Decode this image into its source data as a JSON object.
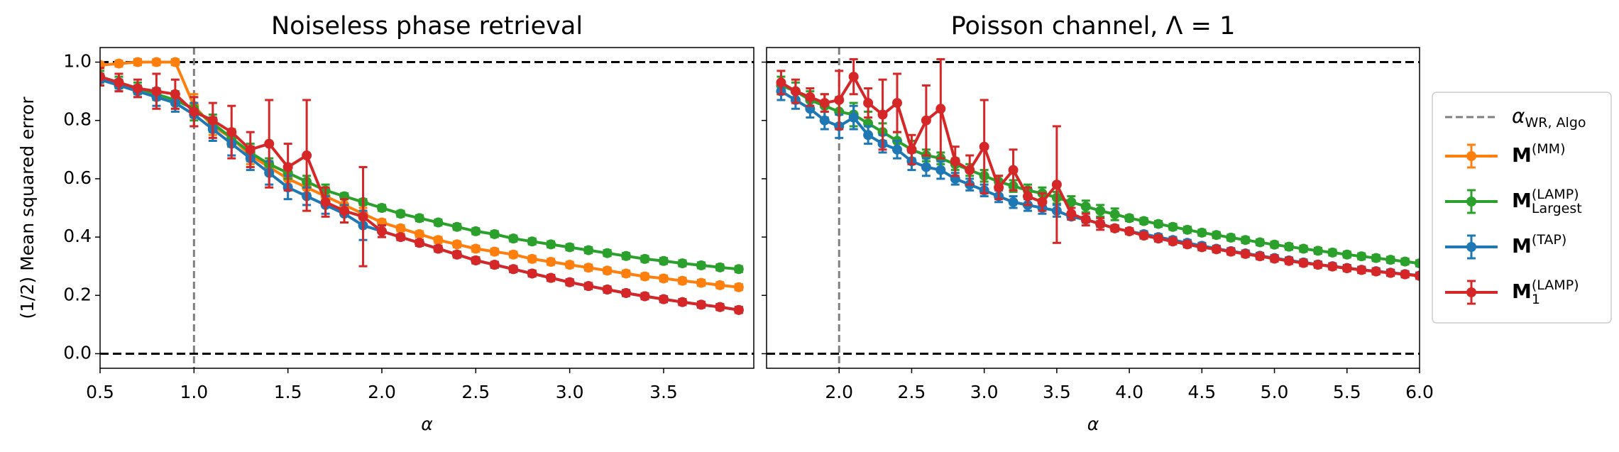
{
  "chart_data": {
    "type": "line",
    "ylabel": "(1/2) Mean squared error",
    "xlabel": "α",
    "ylim": [
      -0.05,
      1.05
    ],
    "yticks": [
      {
        "value": 0,
        "label": "0.0"
      },
      0.2,
      0.4,
      0.6,
      0.8,
      {
        "value": 1,
        "label": "1.0"
      }
    ],
    "hlines": [
      0,
      1
    ],
    "vline_legend": {
      "base": "α",
      "sub": "WR, Algo"
    },
    "series": [
      {
        "name": "M",
        "sup": "(MM)",
        "color": "#ff7f0e"
      },
      {
        "name": "M",
        "sup": "(LAMP)",
        "sub": "Largest",
        "color": "#2ca02c"
      },
      {
        "name": "M",
        "sup": "(TAP)",
        "color": "#1f77b4"
      },
      {
        "name": "M",
        "sup": "(LAMP)",
        "sub": "1",
        "color": "#d62728"
      }
    ],
    "panels": [
      {
        "title": "Noiseless phase retrieval",
        "xlim": [
          0.5,
          3.98
        ],
        "xticks": [
          0.5,
          {
            "value": 1,
            "label": "1.0"
          },
          1.5,
          {
            "value": 2,
            "label": "2.0"
          },
          2.5,
          {
            "value": 3,
            "label": "3.0"
          },
          3.5
        ],
        "vline": 1,
        "x": [
          0.5,
          0.6,
          0.7,
          0.8,
          0.9,
          1.0,
          1.1,
          1.2,
          1.3,
          1.4,
          1.5,
          1.6,
          1.7,
          1.8,
          1.9,
          2.0,
          2.1,
          2.2,
          2.3,
          2.4,
          2.5,
          2.6,
          2.7,
          2.8,
          2.9,
          3.0,
          3.1,
          3.2,
          3.3,
          3.4,
          3.5,
          3.6,
          3.7,
          3.8,
          3.9
        ],
        "series": [
          {
            "values": [
              0.99,
              0.995,
              1.0,
              1.0,
              1.0,
              0.85,
              0.78,
              0.74,
              0.68,
              0.64,
              0.6,
              0.57,
              0.54,
              0.51,
              0.48,
              0.45,
              0.43,
              0.41,
              0.39,
              0.375,
              0.36,
              0.35,
              0.34,
              0.325,
              0.315,
              0.305,
              0.295,
              0.285,
              0.275,
              0.265,
              0.258,
              0.25,
              0.243,
              0.235,
              0.228
            ],
            "errors": [
              0.01,
              0.01,
              0.01,
              0.01,
              0.01,
              0.04,
              0.03,
              0.03,
              0.03,
              0.02,
              0.02,
              0.02,
              0.02,
              0.02,
              0.02,
              0.01,
              0.01,
              0.01,
              0.01,
              0.01,
              0.01,
              0.01,
              0.01,
              0.01,
              0.01,
              0.01,
              0.01,
              0.01,
              0.01,
              0.01,
              0.01,
              0.01,
              0.01,
              0.01,
              0.01
            ]
          },
          {
            "values": [
              0.95,
              0.93,
              0.91,
              0.89,
              0.87,
              0.84,
              0.79,
              0.74,
              0.69,
              0.65,
              0.62,
              0.59,
              0.56,
              0.54,
              0.52,
              0.5,
              0.48,
              0.465,
              0.45,
              0.435,
              0.42,
              0.41,
              0.395,
              0.385,
              0.375,
              0.365,
              0.355,
              0.345,
              0.335,
              0.325,
              0.318,
              0.31,
              0.303,
              0.296,
              0.29
            ],
            "errors": [
              0.02,
              0.02,
              0.02,
              0.02,
              0.03,
              0.04,
              0.03,
              0.03,
              0.03,
              0.02,
              0.02,
              0.02,
              0.02,
              0.01,
              0.01,
              0.01,
              0.01,
              0.01,
              0.01,
              0.01,
              0.01,
              0.01,
              0.01,
              0.01,
              0.01,
              0.01,
              0.01,
              0.01,
              0.01,
              0.01,
              0.01,
              0.01,
              0.01,
              0.01,
              0.01
            ]
          },
          {
            "values": [
              0.94,
              0.92,
              0.9,
              0.88,
              0.86,
              0.82,
              0.77,
              0.72,
              0.67,
              0.62,
              0.57,
              0.54,
              0.51,
              0.48,
              0.44,
              0.42,
              0.4,
              0.38,
              0.36,
              0.34,
              0.32,
              0.305,
              0.29,
              0.275,
              0.26,
              0.245,
              0.232,
              0.22,
              0.208,
              0.197,
              0.187,
              0.177,
              0.168,
              0.16,
              0.15
            ],
            "errors": [
              0.02,
              0.02,
              0.02,
              0.03,
              0.03,
              0.04,
              0.04,
              0.04,
              0.04,
              0.04,
              0.04,
              0.03,
              0.03,
              0.03,
              0.05,
              0.02,
              0.01,
              0.01,
              0.01,
              0.01,
              0.01,
              0.01,
              0.01,
              0.01,
              0.01,
              0.01,
              0.01,
              0.01,
              0.01,
              0.01,
              0.01,
              0.01,
              0.01,
              0.01,
              0.01
            ]
          },
          {
            "values": [
              0.95,
              0.93,
              0.91,
              0.9,
              0.89,
              0.83,
              0.8,
              0.76,
              0.7,
              0.72,
              0.64,
              0.68,
              0.52,
              0.49,
              0.47,
              0.42,
              0.4,
              0.38,
              0.36,
              0.34,
              0.32,
              0.305,
              0.29,
              0.275,
              0.26,
              0.245,
              0.232,
              0.22,
              0.208,
              0.197,
              0.187,
              0.177,
              0.168,
              0.16,
              0.15
            ],
            "errors": [
              0.03,
              0.03,
              0.03,
              0.06,
              0.05,
              0.05,
              0.06,
              0.09,
              0.06,
              0.15,
              0.08,
              0.19,
              0.05,
              0.04,
              0.17,
              0.02,
              0.01,
              0.01,
              0.01,
              0.01,
              0.01,
              0.01,
              0.01,
              0.01,
              0.01,
              0.01,
              0.01,
              0.01,
              0.01,
              0.01,
              0.01,
              0.01,
              0.01,
              0.01,
              0.01
            ]
          }
        ]
      },
      {
        "title": "Poisson channel, Λ = 1",
        "xlim": [
          1.5,
          6.0
        ],
        "xticks": [
          {
            "value": 2,
            "label": "2.0"
          },
          2.5,
          {
            "value": 3,
            "label": "3.0"
          },
          3.5,
          {
            "value": 4,
            "label": "4.0"
          },
          4.5,
          {
            "value": 5,
            "label": "5.0"
          },
          5.5,
          {
            "value": 6,
            "label": "6.0"
          }
        ],
        "vline": 2,
        "x": [
          1.6,
          1.7,
          1.8,
          1.9,
          2.0,
          2.1,
          2.2,
          2.3,
          2.4,
          2.5,
          2.6,
          2.7,
          2.8,
          2.9,
          3.0,
          3.1,
          3.2,
          3.3,
          3.4,
          3.5,
          3.6,
          3.7,
          3.8,
          3.9,
          4.0,
          4.1,
          4.2,
          4.3,
          4.4,
          4.5,
          4.6,
          4.7,
          4.8,
          4.9,
          5.0,
          5.1,
          5.2,
          5.3,
          5.4,
          5.5,
          5.6,
          5.7,
          5.8,
          5.9,
          6.0
        ],
        "series": [
          {
            "values": [
              null,
              null,
              null,
              null,
              null,
              null,
              null,
              null,
              null,
              null,
              null,
              null,
              null,
              null,
              null,
              null,
              null,
              null,
              null,
              null,
              null,
              null,
              null,
              null,
              null,
              null,
              null,
              null,
              null,
              null,
              null,
              null,
              null,
              null,
              null,
              null,
              null,
              null,
              null,
              null,
              null,
              null,
              null,
              null,
              null
            ],
            "errors": [
              null,
              null,
              null,
              null,
              null,
              null,
              null,
              null,
              null,
              null,
              null,
              null,
              null,
              null,
              null,
              null,
              null,
              null,
              null,
              null,
              null,
              null,
              null,
              null,
              null,
              null,
              null,
              null,
              null,
              null,
              null,
              null,
              null,
              null,
              null,
              null,
              null,
              null,
              null,
              null,
              null,
              null,
              null,
              null,
              null
            ]
          },
          {
            "values": [
              0.92,
              0.9,
              0.87,
              0.85,
              0.83,
              0.82,
              0.79,
              0.76,
              0.73,
              0.7,
              0.68,
              0.67,
              0.65,
              0.63,
              0.61,
              0.59,
              0.575,
              0.56,
              0.55,
              0.535,
              0.52,
              0.505,
              0.49,
              0.478,
              0.465,
              0.455,
              0.445,
              0.435,
              0.425,
              0.415,
              0.407,
              0.398,
              0.39,
              0.382,
              0.374,
              0.367,
              0.36,
              0.353,
              0.347,
              0.34,
              0.334,
              0.328,
              0.322,
              0.316,
              0.31
            ],
            "errors": [
              0.03,
              0.03,
              0.03,
              0.04,
              0.05,
              0.04,
              0.04,
              0.03,
              0.03,
              0.03,
              0.02,
              0.02,
              0.02,
              0.02,
              0.02,
              0.02,
              0.02,
              0.02,
              0.02,
              0.02,
              0.02,
              0.02,
              0.02,
              0.02,
              0.01,
              0.01,
              0.01,
              0.01,
              0.01,
              0.01,
              0.01,
              0.01,
              0.01,
              0.01,
              0.01,
              0.01,
              0.01,
              0.01,
              0.01,
              0.01,
              0.01,
              0.01,
              0.01,
              0.01,
              0.01
            ]
          },
          {
            "values": [
              0.9,
              0.87,
              0.84,
              0.8,
              0.78,
              0.81,
              0.75,
              0.72,
              0.7,
              0.66,
              0.64,
              0.63,
              0.6,
              0.58,
              0.56,
              0.54,
              0.52,
              0.51,
              0.5,
              0.49,
              0.47,
              0.46,
              0.445,
              0.43,
              0.42,
              0.41,
              0.4,
              0.39,
              0.38,
              0.37,
              0.36,
              0.352,
              0.344,
              0.336,
              0.328,
              0.32,
              0.313,
              0.306,
              0.3,
              0.294,
              0.288,
              0.283,
              0.278,
              0.273,
              0.268
            ],
            "errors": [
              0.03,
              0.03,
              0.03,
              0.03,
              0.04,
              0.04,
              0.03,
              0.03,
              0.03,
              0.03,
              0.03,
              0.03,
              0.02,
              0.02,
              0.02,
              0.02,
              0.02,
              0.02,
              0.02,
              0.02,
              0.01,
              0.01,
              0.01,
              0.01,
              0.01,
              0.01,
              0.01,
              0.01,
              0.01,
              0.01,
              0.01,
              0.01,
              0.01,
              0.01,
              0.01,
              0.01,
              0.01,
              0.01,
              0.01,
              0.01,
              0.01,
              0.01,
              0.01,
              0.01,
              0.01
            ]
          },
          {
            "values": [
              0.93,
              0.9,
              0.88,
              0.86,
              0.87,
              0.95,
              0.86,
              0.82,
              0.86,
              0.7,
              0.8,
              0.84,
              0.66,
              0.63,
              0.71,
              0.57,
              0.63,
              0.54,
              0.52,
              0.58,
              0.48,
              0.46,
              0.445,
              0.43,
              0.42,
              0.405,
              0.395,
              0.385,
              0.375,
              0.365,
              0.358,
              0.35,
              0.342,
              0.334,
              0.326,
              0.318,
              0.311,
              0.305,
              0.299,
              0.293,
              0.287,
              0.282,
              0.277,
              0.272,
              0.267
            ],
            "errors": [
              0.04,
              0.04,
              0.03,
              0.03,
              0.1,
              0.06,
              0.05,
              0.12,
              0.1,
              0.05,
              0.12,
              0.17,
              0.05,
              0.05,
              0.16,
              0.04,
              0.07,
              0.03,
              0.03,
              0.2,
              0.02,
              0.02,
              0.02,
              0.01,
              0.01,
              0.01,
              0.01,
              0.01,
              0.01,
              0.01,
              0.01,
              0.01,
              0.01,
              0.01,
              0.01,
              0.01,
              0.01,
              0.01,
              0.01,
              0.01,
              0.01,
              0.01,
              0.01,
              0.01,
              0.01
            ]
          }
        ]
      }
    ]
  }
}
